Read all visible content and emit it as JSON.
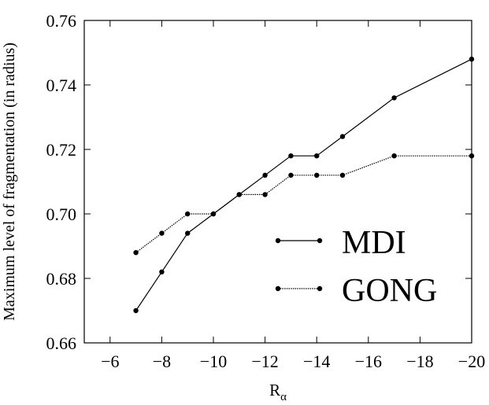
{
  "chart_data": {
    "type": "line",
    "title": "",
    "xlabel": "R",
    "xlabel_sub": "α",
    "ylabel": "Maximum level of fragmentation (in radius)",
    "x_ticks": [
      -6,
      -8,
      -10,
      -12,
      -14,
      -16,
      -18,
      -20
    ],
    "x_tick_labels": [
      "−6",
      "−8",
      "−10",
      "−12",
      "−14",
      "−16",
      "−18",
      "−20"
    ],
    "y_ticks": [
      0.66,
      0.68,
      0.7,
      0.72,
      0.74,
      0.76
    ],
    "y_tick_labels": [
      "0.66",
      "0.68",
      "0.70",
      "0.72",
      "0.74",
      "0.76"
    ],
    "xlim": [
      -5,
      -20
    ],
    "ylim": [
      0.66,
      0.76
    ],
    "grid": false,
    "legend_position": "lower-right",
    "series": [
      {
        "name": "MDI",
        "line_style": "solid",
        "x": [
          -7,
          -8,
          -9,
          -10,
          -11,
          -12,
          -13,
          -14,
          -15,
          -17,
          -20
        ],
        "y": [
          0.67,
          0.682,
          0.694,
          0.7,
          0.706,
          0.712,
          0.718,
          0.718,
          0.724,
          0.736,
          0.748
        ]
      },
      {
        "name": "GONG",
        "line_style": "dotted",
        "x": [
          -7,
          -8,
          -9,
          -10,
          -11,
          -12,
          -13,
          -14,
          -15,
          -17,
          -20
        ],
        "y": [
          0.688,
          0.694,
          0.7,
          0.7,
          0.706,
          0.706,
          0.712,
          0.712,
          0.712,
          0.718,
          0.718
        ]
      }
    ]
  }
}
